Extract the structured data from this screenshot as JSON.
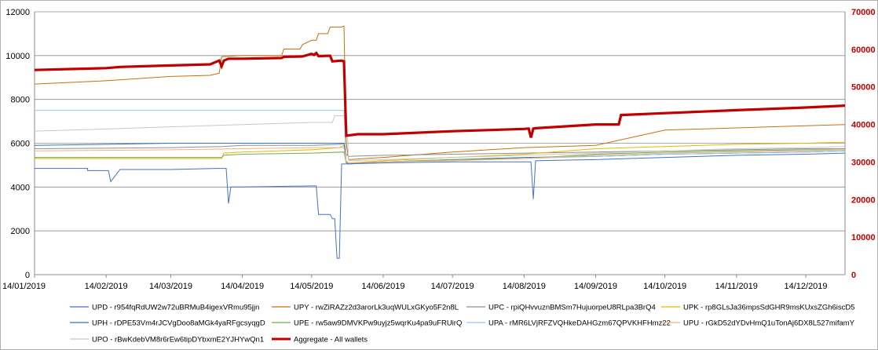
{
  "chart_data": {
    "type": "line",
    "title": "",
    "xlabel": "",
    "ylabel": "",
    "y_left_lim": [
      0,
      12000
    ],
    "y_right_lim": [
      0,
      70000
    ],
    "y_left_ticks": [
      "0",
      "2000",
      "4000",
      "6000",
      "8000",
      "10000",
      "12000"
    ],
    "y_right_ticks": [
      "0",
      "10000",
      "20000",
      "30000",
      "40000",
      "50000",
      "60000",
      "70000"
    ],
    "x_ticks": [
      "14/01/2019",
      "14/02/2019",
      "14/03/2019",
      "14/04/2019",
      "14/05/2019",
      "14/06/2019",
      "14/07/2019",
      "14/08/2019",
      "14/09/2019",
      "14/10/2019",
      "14/11/2019",
      "14/12/2019"
    ],
    "x_range": [
      "14/01/2019",
      "31/12/2019"
    ],
    "grid": "horizontal",
    "legend_position": "bottom",
    "series": [
      {
        "name": "UPD - r954fqRdUW2w72uBRMuB4igexVRmu95jjn",
        "color": "#4472c4",
        "axis": "left",
        "x": [
          "14/01/2019",
          "06/02/2019",
          "06/02/2019",
          "14/02/2019",
          "15/02/2019",
          "16/02/2019",
          "20/02/2019",
          "14/03/2019",
          "03/04/2019",
          "07/04/2019",
          "08/04/2019",
          "09/04/2019",
          "14/04/2019",
          "15/05/2019",
          "16/05/2019",
          "17/05/2019",
          "22/05/2019",
          "23/05/2019",
          "24/05/2019",
          "25/05/2019",
          "26/05/2019",
          "27/05/2019",
          "14/06/2019",
          "14/07/2019",
          "14/08/2019",
          "17/08/2019",
          "18/08/2019",
          "19/08/2019",
          "20/08/2019",
          "14/09/2019",
          "14/10/2019",
          "14/11/2019",
          "14/12/2019",
          "31/12/2019"
        ],
        "y": [
          4850,
          4850,
          4750,
          4750,
          4750,
          4250,
          4800,
          4800,
          4850,
          4850,
          3250,
          4000,
          4000,
          4050,
          4050,
          2750,
          2750,
          2550,
          2550,
          750,
          750,
          5050,
          5100,
          5150,
          5150,
          5150,
          3450,
          5200,
          5200,
          5250,
          5350,
          5450,
          5500,
          5550
        ]
      },
      {
        "name": "UPY - rwZiRAZz2d3arorLk3uqWULxGKyo5F2n8L",
        "color": "#c5700a",
        "axis": "left",
        "x": [
          "14/01/2019",
          "14/02/2019",
          "14/03/2019",
          "31/03/2019",
          "04/04/2019",
          "05/04/2019",
          "14/04/2019",
          "01/05/2019",
          "02/05/2019",
          "09/05/2019",
          "10/05/2019",
          "14/05/2019",
          "16/05/2019",
          "17/05/2019",
          "21/05/2019",
          "22/05/2019",
          "27/05/2019",
          "28/05/2019",
          "29/05/2019",
          "30/05/2019",
          "14/06/2019",
          "14/07/2019",
          "14/08/2019",
          "14/09/2019",
          "14/10/2019",
          "14/11/2019",
          "14/12/2019",
          "31/12/2019"
        ],
        "y": [
          8700,
          8850,
          9050,
          9100,
          9200,
          9950,
          10000,
          10000,
          10300,
          10300,
          10500,
          10700,
          10700,
          11000,
          11000,
          11300,
          11300,
          11350,
          6000,
          5250,
          5350,
          5600,
          5800,
          5900,
          6600,
          6700,
          6800,
          6850
        ]
      },
      {
        "name": "UPC - rpiQHvvuznBMSm7HujuorpeU8RLpa3BrQ4",
        "color": "#8e8e8e",
        "axis": "left",
        "x": [
          "14/01/2019",
          "14/03/2019",
          "05/04/2019",
          "14/04/2019",
          "14/05/2019",
          "27/05/2019",
          "28/05/2019",
          "29/05/2019",
          "30/05/2019",
          "14/06/2019",
          "14/07/2019",
          "14/08/2019",
          "14/09/2019",
          "14/10/2019",
          "14/11/2019",
          "14/12/2019",
          "31/12/2019"
        ],
        "y": [
          5750,
          5800,
          5850,
          5900,
          5900,
          5950,
          6000,
          5500,
          5400,
          5450,
          5500,
          5550,
          5600,
          5650,
          5700,
          5750,
          5750
        ]
      },
      {
        "name": "UPK - rp8GLsJa36mpsSdGHR9msKUxsZGh6iscD5",
        "color": "#e6b800",
        "axis": "left",
        "x": [
          "14/01/2019",
          "14/03/2019",
          "05/04/2019",
          "06/04/2019",
          "14/04/2019",
          "14/05/2019",
          "26/05/2019",
          "27/05/2019",
          "28/05/2019",
          "29/05/2019",
          "30/05/2019",
          "14/06/2019",
          "14/07/2019",
          "14/08/2019",
          "14/09/2019",
          "14/10/2019",
          "14/11/2019",
          "14/12/2019",
          "31/12/2019"
        ],
        "y": [
          5300,
          5300,
          5300,
          5550,
          5600,
          5700,
          5800,
          5850,
          5900,
          5150,
          5100,
          5200,
          5350,
          5500,
          5750,
          5850,
          5950,
          6000,
          6050
        ]
      },
      {
        "name": "UPH - rDPE53Vm4rJCVgDoo8aMGk4yaRFgcsyqgD",
        "color": "#2e75b6",
        "axis": "left",
        "x": [
          "14/01/2019",
          "14/02/2019",
          "14/03/2019",
          "14/04/2019",
          "14/05/2019",
          "28/05/2019",
          "29/05/2019",
          "30/05/2019",
          "14/06/2019",
          "14/07/2019",
          "14/08/2019",
          "14/09/2019",
          "14/10/2019",
          "14/11/2019",
          "14/12/2019",
          "31/12/2019"
        ],
        "y": [
          5900,
          5950,
          6000,
          6000,
          6000,
          6000,
          5100,
          5050,
          5150,
          5250,
          5350,
          5400,
          5500,
          5550,
          5600,
          5650
        ]
      },
      {
        "name": "UPE - rw5aw9DMVKPw9uyjz5wqrKu4pa9uFRUirQ",
        "color": "#70ad47",
        "axis": "left",
        "x": [
          "14/01/2019",
          "14/03/2019",
          "05/04/2019",
          "06/04/2019",
          "14/04/2019",
          "14/05/2019",
          "28/05/2019",
          "29/05/2019",
          "30/05/2019",
          "14/06/2019",
          "14/07/2019",
          "14/08/2019",
          "14/09/2019",
          "14/10/2019",
          "14/11/2019",
          "14/12/2019",
          "31/12/2019"
        ],
        "y": [
          5350,
          5350,
          5350,
          5450,
          5500,
          5550,
          5600,
          5100,
          5100,
          5150,
          5250,
          5300,
          5500,
          5600,
          5650,
          5700,
          5700
        ]
      },
      {
        "name": "UPA - rMR6LVjRFZVQHkeDAHGzm67QPVKHFHmz22",
        "color": "#9dc3e6",
        "axis": "left",
        "x": [
          "14/01/2019",
          "14/02/2019",
          "14/03/2019",
          "14/04/2019",
          "14/05/2019",
          "28/05/2019",
          "29/05/2019",
          "30/05/2019",
          "14/06/2019",
          "14/07/2019",
          "14/08/2019",
          "14/09/2019",
          "14/10/2019",
          "14/11/2019",
          "14/12/2019",
          "31/12/2019"
        ],
        "y": [
          7500,
          7500,
          7500,
          7500,
          7500,
          7500,
          5200,
          5100,
          5150,
          5200,
          5300,
          5400,
          5500,
          5550,
          5600,
          5650
        ]
      },
      {
        "name": "UPU - rGkD52dYDvHmQ1uTonAj6DX8L527mifamY",
        "color": "#f4b183",
        "axis": "left",
        "x": [
          "14/01/2019",
          "14/03/2019",
          "14/04/2019",
          "14/05/2019",
          "28/05/2019",
          "29/05/2019",
          "30/05/2019",
          "14/06/2019",
          "14/07/2019",
          "14/08/2019",
          "14/09/2019",
          "14/10/2019",
          "14/11/2019",
          "14/12/2019",
          "31/12/2019"
        ],
        "y": [
          5650,
          5700,
          5750,
          5800,
          5800,
          5150,
          5100,
          5150,
          5200,
          5300,
          5450,
          5550,
          5600,
          5650,
          5700
        ]
      },
      {
        "name": "UPO - rBwKdebVM8r6rEw6tipDYbxmE2YJHYwQn1",
        "color": "#c8c8c8",
        "axis": "left",
        "x": [
          "14/01/2019",
          "14/02/2019",
          "14/03/2019",
          "14/04/2019",
          "14/05/2019",
          "23/05/2019",
          "24/05/2019",
          "28/05/2019",
          "29/05/2019",
          "30/05/2019",
          "14/06/2019",
          "14/07/2019",
          "14/08/2019",
          "14/09/2019",
          "14/10/2019",
          "14/11/2019",
          "14/12/2019",
          "31/12/2019"
        ],
        "y": [
          6550,
          6650,
          6750,
          6850,
          6950,
          6950,
          7250,
          7250,
          7450,
          5200,
          5250,
          5350,
          5450,
          5550,
          5650,
          5750,
          5800,
          5850
        ]
      },
      {
        "name": "Aggregate - All wallets",
        "color": "#c00000",
        "axis": "right",
        "x": [
          "14/01/2019",
          "14/02/2019",
          "20/02/2019",
          "14/03/2019",
          "31/03/2019",
          "04/04/2019",
          "05/04/2019",
          "06/04/2019",
          "08/04/2019",
          "14/04/2019",
          "01/05/2019",
          "02/05/2019",
          "10/05/2019",
          "14/05/2019",
          "15/05/2019",
          "16/05/2019",
          "17/05/2019",
          "22/05/2019",
          "23/05/2019",
          "27/05/2019",
          "28/05/2019",
          "29/05/2019",
          "03/06/2019",
          "14/06/2019",
          "14/07/2019",
          "14/08/2019",
          "16/08/2019",
          "17/08/2019",
          "18/08/2019",
          "19/08/2019",
          "14/09/2019",
          "24/09/2019",
          "25/09/2019",
          "14/10/2019",
          "14/11/2019",
          "14/12/2019",
          "31/12/2019"
        ],
        "y": [
          54500,
          55000,
          55300,
          55700,
          56000,
          57000,
          55500,
          57000,
          57500,
          57500,
          57700,
          58000,
          58100,
          58800,
          58500,
          59000,
          58200,
          58300,
          56800,
          57000,
          56800,
          37000,
          37400,
          37400,
          38200,
          38800,
          38900,
          36500,
          38900,
          39000,
          40000,
          40000,
          42500,
          43000,
          43800,
          44500,
          45000
        ]
      }
    ]
  }
}
